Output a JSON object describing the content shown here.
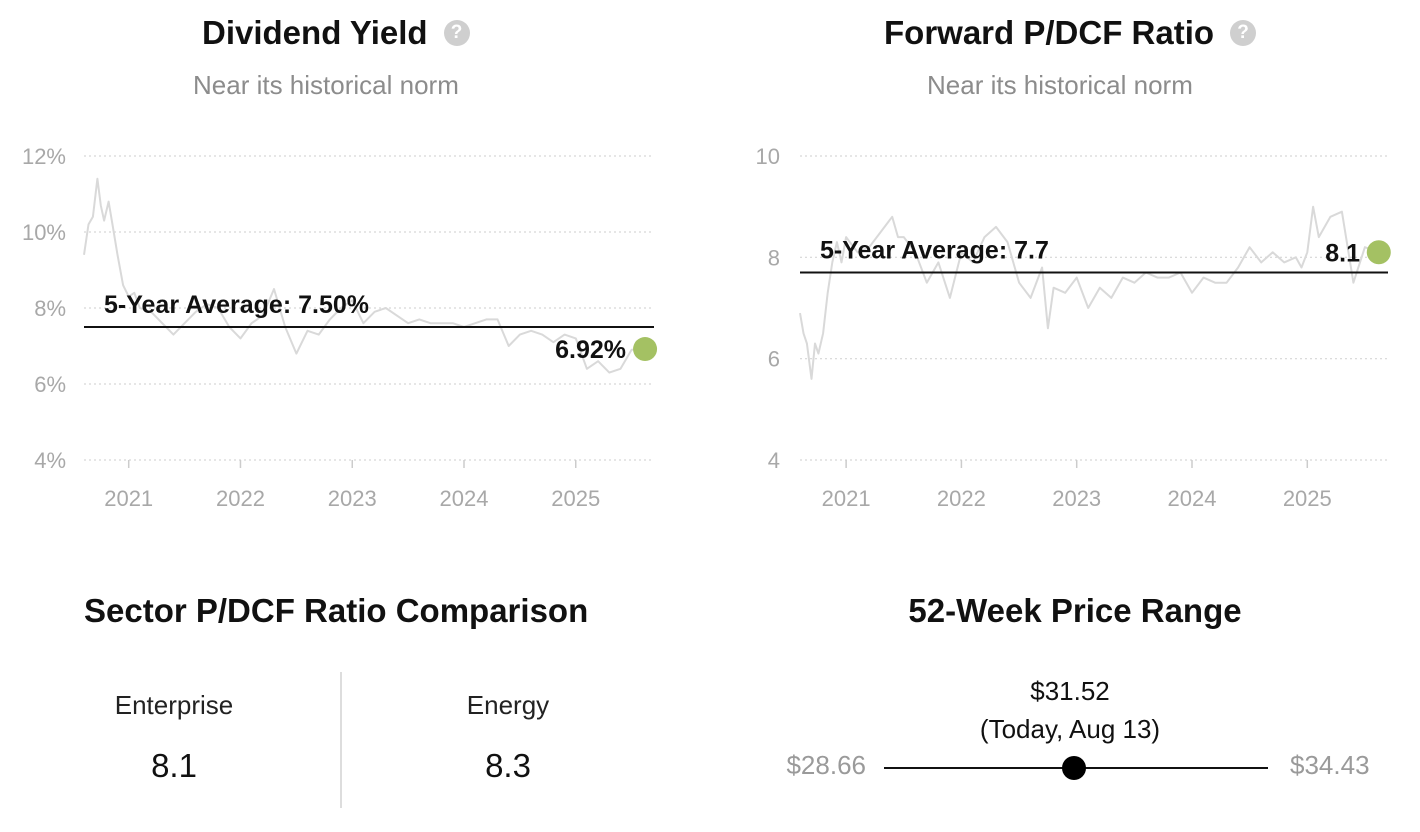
{
  "charts": {
    "dividend": {
      "title": "Dividend Yield",
      "subtitle": "Near its historical norm",
      "help_icon": "question-circle-icon"
    },
    "pdcf": {
      "title": "Forward P/DCF Ratio",
      "subtitle": "Near its historical norm",
      "help_icon": "question-circle-icon"
    }
  },
  "chart_data": [
    {
      "type": "line",
      "title": "Dividend Yield",
      "subtitle": "Near its historical norm",
      "xlabel": "",
      "ylabel": "",
      "xlim": [
        2020.6,
        2025.7
      ],
      "ylim": [
        4,
        12
      ],
      "x_ticks": [
        2021,
        2022,
        2023,
        2024,
        2025
      ],
      "x_tick_labels": [
        "2021",
        "2022",
        "2023",
        "2024",
        "2025"
      ],
      "y_ticks": [
        4,
        6,
        8,
        10,
        12
      ],
      "y_tick_labels": [
        "4%",
        "6%",
        "8%",
        "10%",
        "12%"
      ],
      "grid": "horizontal dotted",
      "line_color": "#d9d9d9",
      "average": {
        "value": 7.5,
        "label": "5-Year Average: 7.50%"
      },
      "current": {
        "x": 2025.62,
        "value": 6.92,
        "label": "6.92%",
        "color": "#a4c163"
      },
      "series": [
        {
          "x": [
            2020.6,
            2020.64,
            2020.68,
            2020.72,
            2020.75,
            2020.78,
            2020.82,
            2020.86,
            2020.9,
            2020.95,
            2021.0,
            2021.05,
            2021.1,
            2021.2,
            2021.3,
            2021.4,
            2021.5,
            2021.6,
            2021.7,
            2021.8,
            2021.9,
            2022.0,
            2022.1,
            2022.2,
            2022.3,
            2022.4,
            2022.5,
            2022.6,
            2022.7,
            2022.8,
            2022.9,
            2023.0,
            2023.1,
            2023.2,
            2023.3,
            2023.4,
            2023.5,
            2023.6,
            2023.7,
            2023.8,
            2023.9,
            2024.0,
            2024.1,
            2024.2,
            2024.3,
            2024.4,
            2024.5,
            2024.6,
            2024.7,
            2024.8,
            2024.9,
            2025.0,
            2025.1,
            2025.2,
            2025.3,
            2025.4,
            2025.5,
            2025.62
          ],
          "y": [
            9.4,
            10.2,
            10.4,
            11.4,
            10.7,
            10.3,
            10.8,
            10.1,
            9.4,
            8.6,
            8.3,
            8.4,
            8.0,
            7.9,
            7.6,
            7.3,
            7.6,
            7.9,
            8.1,
            8.0,
            7.5,
            7.2,
            7.6,
            7.8,
            8.5,
            7.5,
            6.8,
            7.4,
            7.3,
            7.7,
            8.0,
            8.2,
            7.6,
            7.9,
            8.0,
            7.8,
            7.6,
            7.7,
            7.6,
            7.6,
            7.6,
            7.5,
            7.6,
            7.7,
            7.7,
            7.0,
            7.3,
            7.4,
            7.3,
            7.1,
            7.3,
            7.2,
            6.4,
            6.6,
            6.3,
            6.4,
            6.9,
            6.92
          ]
        }
      ]
    },
    {
      "type": "line",
      "title": "Forward P/DCF Ratio",
      "subtitle": "Near its historical norm",
      "xlabel": "",
      "ylabel": "",
      "xlim": [
        2020.6,
        2025.7
      ],
      "ylim": [
        4,
        10
      ],
      "x_ticks": [
        2021,
        2022,
        2023,
        2024,
        2025
      ],
      "x_tick_labels": [
        "2021",
        "2022",
        "2023",
        "2024",
        "2025"
      ],
      "y_ticks": [
        4,
        6,
        8,
        10
      ],
      "y_tick_labels": [
        "4",
        "6",
        "8",
        "10"
      ],
      "grid": "horizontal dotted",
      "line_color": "#d9d9d9",
      "average": {
        "value": 7.7,
        "label": "5-Year Average: 7.7"
      },
      "current": {
        "x": 2025.62,
        "value": 8.1,
        "label": "8.1",
        "color": "#a4c163"
      },
      "series": [
        {
          "x": [
            2020.6,
            2020.63,
            2020.66,
            2020.7,
            2020.73,
            2020.76,
            2020.8,
            2020.84,
            2020.88,
            2020.92,
            2020.96,
            2021.0,
            2021.1,
            2021.2,
            2021.3,
            2021.4,
            2021.45,
            2021.5,
            2021.6,
            2021.7,
            2021.8,
            2021.9,
            2022.0,
            2022.1,
            2022.2,
            2022.3,
            2022.4,
            2022.5,
            2022.6,
            2022.7,
            2022.75,
            2022.8,
            2022.9,
            2023.0,
            2023.1,
            2023.2,
            2023.3,
            2023.4,
            2023.5,
            2023.6,
            2023.7,
            2023.8,
            2023.9,
            2024.0,
            2024.1,
            2024.2,
            2024.3,
            2024.4,
            2024.5,
            2024.6,
            2024.7,
            2024.8,
            2024.9,
            2024.95,
            2025.0,
            2025.05,
            2025.1,
            2025.2,
            2025.3,
            2025.4,
            2025.5,
            2025.62
          ],
          "y": [
            6.9,
            6.5,
            6.3,
            5.6,
            6.3,
            6.1,
            6.5,
            7.3,
            7.9,
            8.3,
            7.9,
            8.4,
            8.1,
            8.2,
            8.5,
            8.8,
            8.4,
            8.4,
            8.1,
            7.5,
            7.9,
            7.2,
            8.1,
            7.9,
            8.4,
            8.6,
            8.3,
            7.5,
            7.2,
            7.8,
            6.6,
            7.4,
            7.3,
            7.6,
            7.0,
            7.4,
            7.2,
            7.6,
            7.5,
            7.7,
            7.6,
            7.6,
            7.7,
            7.3,
            7.6,
            7.5,
            7.5,
            7.8,
            8.2,
            7.9,
            8.1,
            7.9,
            8.0,
            7.8,
            8.1,
            9.0,
            8.4,
            8.8,
            8.9,
            7.5,
            8.2,
            8.1
          ]
        }
      ]
    }
  ],
  "sector": {
    "title": "Sector P/DCF Ratio Comparison",
    "items": [
      {
        "label": "Enterprise",
        "value": "8.1"
      },
      {
        "label": "Energy",
        "value": "8.3"
      }
    ]
  },
  "price_range": {
    "title": "52-Week Price Range",
    "current_price": "$31.52",
    "current_note": "(Today, Aug 13)",
    "low": "$28.66",
    "high": "$34.43",
    "position_fraction": 0.496
  }
}
